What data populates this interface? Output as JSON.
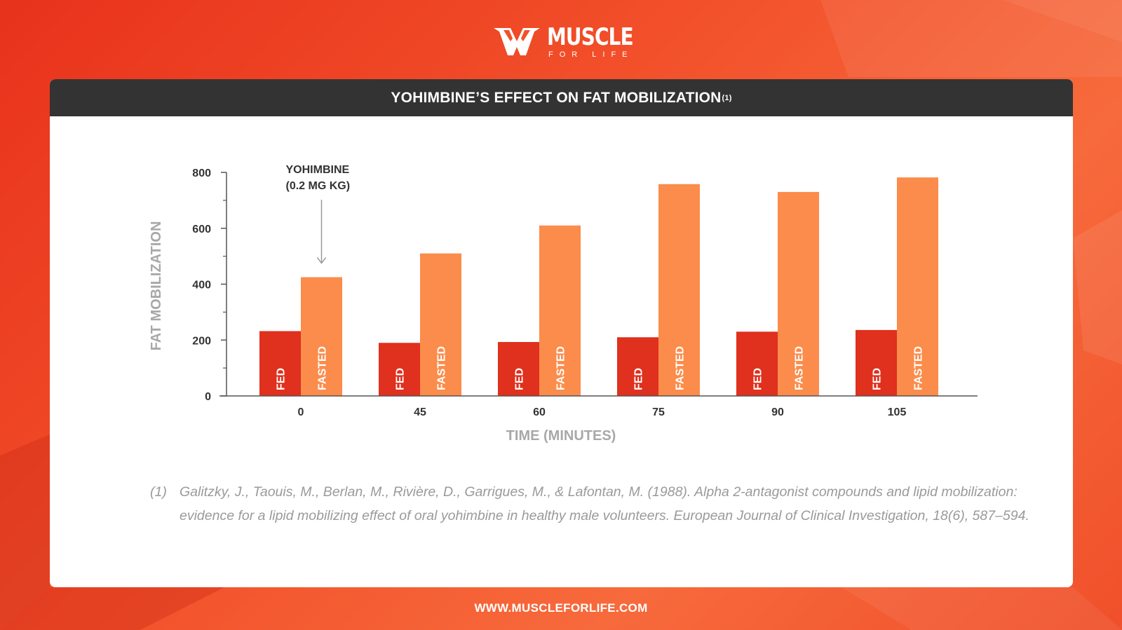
{
  "brand": {
    "logo_icon": "muscle-for-life-m-logo",
    "name_main": "MUSCLE",
    "name_sub": "FOR LIFE",
    "website": "WWW.MUSCLEFORLIFE.COM"
  },
  "colors": {
    "fed": "#e0301e",
    "fasted": "#fb8c4b",
    "header_bg": "#333333",
    "axis_label": "#a8a8a8",
    "tick_text": "#333333"
  },
  "chart_data": {
    "type": "bar",
    "title": "YOHIMBINE’S EFFECT ON FAT MOBILIZATION",
    "title_ref": "(1)",
    "xlabel": "TIME (MINUTES)",
    "ylabel": "FAT MOBILIZATION",
    "categories": [
      "0",
      "45",
      "60",
      "75",
      "90",
      "105"
    ],
    "ylim": [
      0,
      800
    ],
    "yticks": [
      0,
      200,
      400,
      600,
      800
    ],
    "grid": false,
    "series": [
      {
        "name": "FED",
        "values": [
          232,
          190,
          193,
          210,
          230,
          236
        ]
      },
      {
        "name": "FASTED",
        "values": [
          425,
          510,
          610,
          758,
          730,
          782
        ]
      }
    ],
    "annotation": {
      "line1": "YOHIMBINE",
      "line2": "(0.2 MG KG)",
      "category": "0",
      "series": "FASTED"
    }
  },
  "footnote": {
    "number": "(1)",
    "text": "Galitzky, J., Taouis, M., Berlan, M., Rivière, D., Garrigues, M., & Lafontan, M. (1988). Alpha 2-antagonist compounds and lipid mobilization: evidence for a lipid mobilizing effect of oral yohimbine in healthy male volunteers. European Journal of Clinical Investigation, 18(6), 587–594."
  }
}
